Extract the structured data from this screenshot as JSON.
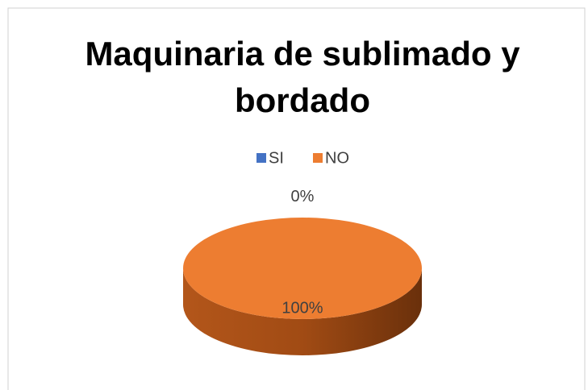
{
  "chart_data": {
    "type": "pie",
    "title": "Maquinaria de sublimado y bordado",
    "categories": [
      "SI",
      "NO"
    ],
    "values": [
      0,
      100
    ],
    "value_labels": [
      "0%",
      "100%"
    ],
    "colors": [
      "#4472c4",
      "#ed7d31"
    ],
    "legend": "top"
  }
}
